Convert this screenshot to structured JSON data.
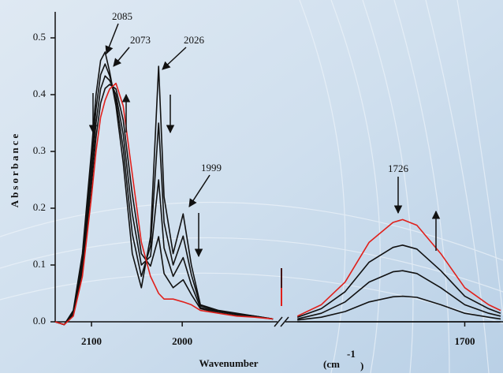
{
  "chart_data": [
    {
      "type": "line",
      "y_label": "Absorbance",
      "x_label": "Wavenumber",
      "x_unit": [
        "(cm",
        "-1",
        ")"
      ],
      "annotations": [
        "2085",
        "2073",
        "2026",
        "1999"
      ],
      "xlim": [
        2140,
        1895
      ],
      "xticks": [
        2100,
        2000
      ],
      "ylim": [
        0,
        0.5
      ],
      "yticks": [
        {
          "value": 0,
          "label": "0.0"
        },
        0.1,
        0.2,
        0.3,
        0.4,
        0.5
      ],
      "x": [
        2140,
        2130,
        2120,
        2110,
        2100,
        2095,
        2090,
        2085,
        2080,
        2073,
        2065,
        2055,
        2045,
        2035,
        2026,
        2020,
        2010,
        1999,
        1990,
        1980,
        1960,
        1940,
        1920,
        1900
      ],
      "series": [
        {
          "color": "#111111",
          "values": [
            0,
            -0.005,
            0.02,
            0.12,
            0.3,
            0.4,
            0.46,
            0.475,
            0.44,
            0.38,
            0.28,
            0.12,
            0.06,
            0.15,
            0.45,
            0.22,
            0.12,
            0.19,
            0.1,
            0.03,
            0.02,
            0.015,
            0.01,
            0.005
          ]
        },
        {
          "color": "#111111",
          "values": [
            0,
            -0.005,
            0.018,
            0.11,
            0.28,
            0.375,
            0.435,
            0.454,
            0.433,
            0.39,
            0.305,
            0.155,
            0.08,
            0.133,
            0.35,
            0.175,
            0.1,
            0.151,
            0.083,
            0.028,
            0.019,
            0.014,
            0.01,
            0.005
          ]
        },
        {
          "color": "#111111",
          "values": [
            0,
            -0.005,
            0.015,
            0.1,
            0.26,
            0.35,
            0.41,
            0.433,
            0.425,
            0.4,
            0.33,
            0.19,
            0.1,
            0.115,
            0.25,
            0.13,
            0.08,
            0.113,
            0.065,
            0.025,
            0.018,
            0.013,
            0.009,
            0.005
          ]
        },
        {
          "color": "#111111",
          "values": [
            0,
            -0.005,
            0.013,
            0.09,
            0.24,
            0.325,
            0.385,
            0.411,
            0.418,
            0.41,
            0.355,
            0.225,
            0.12,
            0.098,
            0.15,
            0.085,
            0.06,
            0.074,
            0.048,
            0.023,
            0.016,
            0.011,
            0.009,
            0.005
          ]
        },
        {
          "color": "#e0201b",
          "values": [
            0,
            -0.005,
            0.01,
            0.08,
            0.22,
            0.3,
            0.36,
            0.39,
            0.41,
            0.42,
            0.38,
            0.26,
            0.14,
            0.08,
            0.05,
            0.04,
            0.04,
            0.035,
            0.03,
            0.02,
            0.015,
            0.01,
            0.008,
            0.005
          ]
        }
      ]
    },
    {
      "type": "line",
      "annotations": [
        "1726"
      ],
      "xlim": [
        1775,
        1684
      ],
      "xticks": [
        1700
      ],
      "x": [
        1770,
        1760,
        1750,
        1740,
        1730,
        1726,
        1720,
        1710,
        1700,
        1690,
        1685
      ],
      "series": [
        {
          "color": "#111111",
          "values": [
            0,
            0,
            0,
            0,
            0,
            0,
            0,
            0,
            0,
            0,
            0
          ]
        },
        {
          "color": "#111111",
          "values": [
            0.003,
            0.008,
            0.018,
            0.035,
            0.044,
            0.045,
            0.043,
            0.03,
            0.015,
            0.008,
            0.005
          ]
        },
        {
          "color": "#111111",
          "values": [
            0.005,
            0.015,
            0.035,
            0.07,
            0.088,
            0.09,
            0.085,
            0.06,
            0.03,
            0.015,
            0.01
          ]
        },
        {
          "color": "#111111",
          "values": [
            0.008,
            0.023,
            0.053,
            0.105,
            0.131,
            0.135,
            0.128,
            0.09,
            0.045,
            0.023,
            0.015
          ]
        },
        {
          "color": "#e0201b",
          "values": [
            0.01,
            0.03,
            0.07,
            0.14,
            0.175,
            0.18,
            0.17,
            0.12,
            0.06,
            0.03,
            0.02
          ]
        }
      ]
    }
  ]
}
